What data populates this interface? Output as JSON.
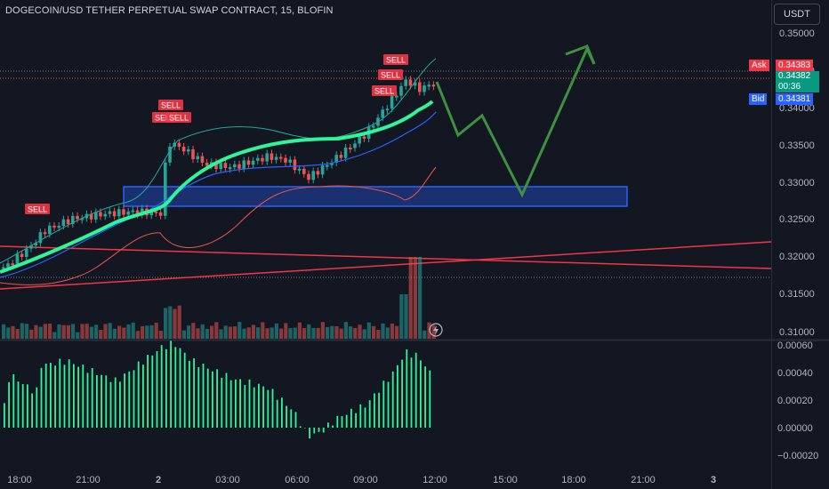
{
  "header": {
    "title": "DOGECOIN/USD TETHER PERPETUAL SWAP CONTRACT, 15, BLOFIN",
    "currency_button": "USDT"
  },
  "price_axis": {
    "ticks": [
      "0.35000",
      "0.34500",
      "0.34000",
      "0.33500",
      "0.33000",
      "0.32500",
      "0.32000",
      "0.31500",
      "0.31000"
    ],
    "ask_label": "Ask",
    "ask_value": "0.34383",
    "last_value": "0.34382",
    "countdown": "00:36",
    "bid_label": "Bid",
    "bid_value": "0.34381"
  },
  "oscillator_axis": {
    "ticks": [
      "0.00060",
      "0.00040",
      "0.00020",
      "0.00000",
      "−0.00020"
    ]
  },
  "time_axis": {
    "ticks": [
      "18:00",
      "21:00",
      "2",
      "03:00",
      "06:00",
      "09:00",
      "12:00",
      "15:00",
      "18:00",
      "21:00",
      "3"
    ]
  },
  "signals": {
    "sell_label": "SELL"
  },
  "colors": {
    "up": "#26a69a",
    "down": "#ef5350",
    "ma": "#2ef59a",
    "projection": "#3f9142",
    "zone": "#2962ff"
  }
}
